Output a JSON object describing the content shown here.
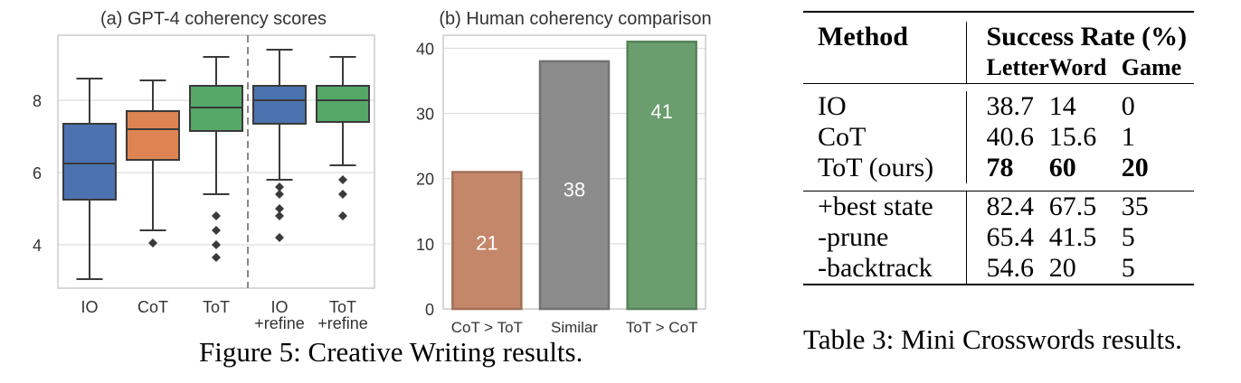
{
  "figure_caption": "Figure 5: Creative Writing results.",
  "table_caption": "Table 3: Mini Crosswords results.",
  "chart_data": [
    {
      "type": "box",
      "title": "(a) GPT-4 coherency scores",
      "xlabel": "",
      "ylabel": "",
      "ylim": [
        2.8,
        9.8
      ],
      "yticks": [
        4,
        6,
        8
      ],
      "grid": true,
      "categories": [
        "IO",
        "CoT",
        "ToT",
        "IO\n+refine",
        "ToT\n+refine"
      ],
      "colors": [
        "#4c72b0",
        "#dd8452",
        "#55a868",
        "#4c72b0",
        "#55a868"
      ],
      "boxes": [
        {
          "whislo": 3.05,
          "q1": 5.25,
          "med": 6.25,
          "q3": 7.35,
          "whishi": 8.6,
          "fliers": []
        },
        {
          "whislo": 4.4,
          "q1": 6.35,
          "med": 7.2,
          "q3": 7.7,
          "whishi": 8.55,
          "fliers": [
            4.05
          ]
        },
        {
          "whislo": 5.4,
          "q1": 7.15,
          "med": 7.8,
          "q3": 8.4,
          "whishi": 9.2,
          "fliers": [
            4.8,
            4.4,
            4.0,
            3.65
          ]
        },
        {
          "whislo": 5.8,
          "q1": 7.35,
          "med": 8.0,
          "q3": 8.4,
          "whishi": 9.4,
          "fliers": [
            5.6,
            5.4,
            5.0,
            4.8,
            4.2
          ]
        },
        {
          "whislo": 6.2,
          "q1": 7.4,
          "med": 8.0,
          "q3": 8.4,
          "whishi": 9.2,
          "fliers": [
            5.8,
            5.4,
            4.8
          ]
        }
      ],
      "divider_after_index": 2
    },
    {
      "type": "bar",
      "title": "(b) Human coherency comparison",
      "xlabel": "",
      "ylabel": "",
      "ylim": [
        0,
        42
      ],
      "yticks": [
        0,
        10,
        20,
        30,
        40
      ],
      "grid": true,
      "categories": [
        "CoT > ToT",
        "Similar",
        "ToT > CoT"
      ],
      "values": [
        21,
        38,
        41
      ],
      "data_labels": [
        "21",
        "38",
        "41"
      ],
      "colors": [
        "#c4876a",
        "#8c8c8c",
        "#6a9e6e"
      ]
    }
  ],
  "table": {
    "header": {
      "method": "Method",
      "success": "Success Rate (%)",
      "letter": "Letter",
      "word": "Word",
      "game": "Game"
    },
    "group1": [
      {
        "method": "IO",
        "letter": "38.7",
        "word": "14",
        "game": "0"
      },
      {
        "method": "CoT",
        "letter": "40.6",
        "word": "15.6",
        "game": "1"
      },
      {
        "method": "ToT (ours)",
        "letter": "78",
        "word": "60",
        "game": "20"
      }
    ],
    "group2": [
      {
        "method": "+best state",
        "letter": "82.4",
        "word": "67.5",
        "game": "35"
      },
      {
        "method": "-prune",
        "letter": "65.4",
        "word": "41.5",
        "game": "5"
      },
      {
        "method": "-backtrack",
        "letter": "54.6",
        "word": "20",
        "game": "5"
      }
    ]
  }
}
